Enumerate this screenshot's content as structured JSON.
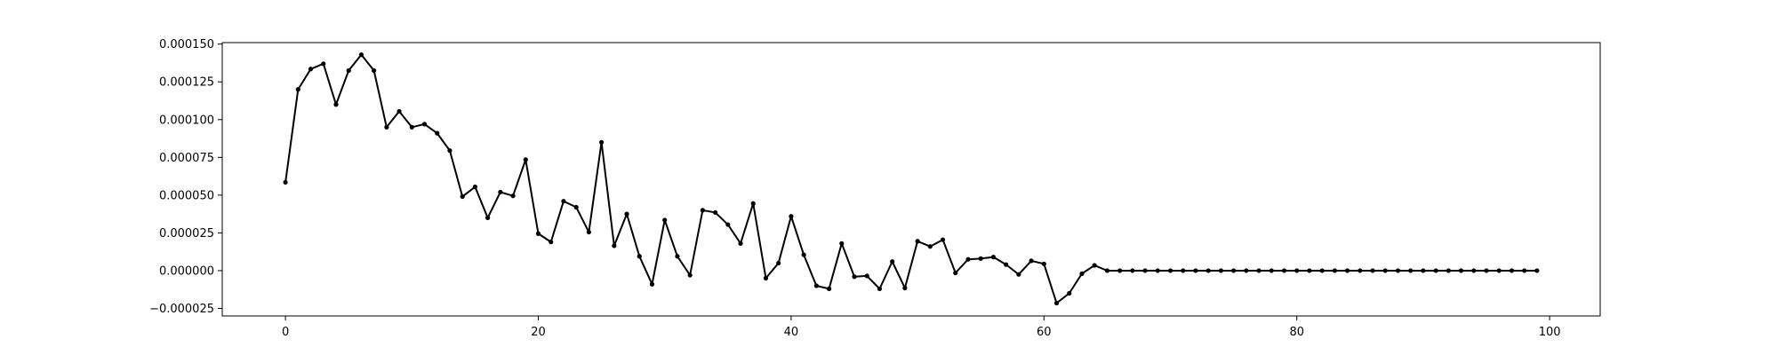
{
  "chart_data": {
    "type": "line",
    "title": "",
    "xlabel": "",
    "ylabel": "",
    "xlim": [
      -5,
      104
    ],
    "ylim": [
      -3e-05,
      0.000151
    ],
    "grid": false,
    "legend": false,
    "line_color": "#000000",
    "marker": "dot",
    "x_ticks": [
      0,
      20,
      40,
      60,
      80,
      100
    ],
    "x_tick_labels": [
      "0",
      "20",
      "40",
      "60",
      "80",
      "100"
    ],
    "y_ticks": [
      -2.5e-05,
      0.0,
      2.5e-05,
      5e-05,
      7.5e-05,
      0.0001,
      0.000125,
      0.00015
    ],
    "y_tick_labels": [
      "−0.000025",
      "0.000000",
      "0.000025",
      "0.000050",
      "0.000075",
      "0.000100",
      "0.000125",
      "0.000150"
    ],
    "series": [
      {
        "x": [
          0,
          1,
          2,
          3,
          4,
          5,
          6,
          7,
          8,
          9,
          10,
          11,
          12,
          13,
          14,
          15,
          16,
          17,
          18,
          19,
          20,
          21,
          22,
          23,
          24,
          25,
          26,
          27,
          28,
          29,
          30,
          31,
          32,
          33,
          34,
          35,
          36,
          37,
          38,
          39,
          40,
          41,
          42,
          43,
          44,
          45,
          46,
          47,
          48,
          49,
          50,
          51,
          52,
          53,
          54,
          55,
          56,
          57,
          58,
          59,
          60,
          61,
          62,
          63,
          64,
          65,
          66,
          67,
          68,
          69,
          70,
          71,
          72,
          73,
          74,
          75,
          76,
          77,
          78,
          79,
          80,
          81,
          82,
          83,
          84,
          85,
          86,
          87,
          88,
          89,
          90,
          91,
          92,
          93,
          94,
          95,
          96,
          97,
          98,
          99
        ],
        "values": [
          5.85e-05,
          0.00012,
          0.0001335,
          0.000137,
          0.00011,
          0.0001325,
          0.000143,
          0.0001325,
          9.5e-05,
          0.0001055,
          9.5e-05,
          9.7e-05,
          9.1e-05,
          7.95e-05,
          4.9e-05,
          5.55e-05,
          3.5e-05,
          5.2e-05,
          4.95e-05,
          7.35e-05,
          2.45e-05,
          1.9e-05,
          4.6e-05,
          4.2e-05,
          2.55e-05,
          8.5e-05,
          1.65e-05,
          3.75e-05,
          9.5e-06,
          -9e-06,
          3.35e-05,
          9.5e-06,
          -3e-06,
          4e-05,
          3.85e-05,
          3.05e-05,
          1.8e-05,
          4.45e-05,
          -5e-06,
          5e-06,
          3.6e-05,
          1.05e-05,
          -1e-05,
          -1.2e-05,
          1.8e-05,
          -4e-06,
          -3.5e-06,
          -1.2e-05,
          6e-06,
          -1.15e-05,
          1.95e-05,
          1.6e-05,
          2.05e-05,
          -1.5e-06,
          7.5e-06,
          8e-06,
          9e-06,
          4e-06,
          -2.5e-06,
          6.5e-06,
          4.5e-06,
          -2.15e-05,
          -1.5e-05,
          -2e-06,
          3.5e-06,
          0.0,
          0.0,
          0.0,
          0.0,
          0.0,
          0.0,
          0.0,
          0.0,
          0.0,
          0.0,
          0.0,
          0.0,
          0.0,
          0.0,
          0.0,
          0.0,
          0.0,
          0.0,
          0.0,
          0.0,
          0.0,
          0.0,
          0.0,
          0.0,
          0.0,
          0.0,
          0.0,
          0.0,
          0.0,
          0.0,
          0.0,
          0.0,
          0.0,
          0.0,
          0.0
        ]
      }
    ]
  }
}
